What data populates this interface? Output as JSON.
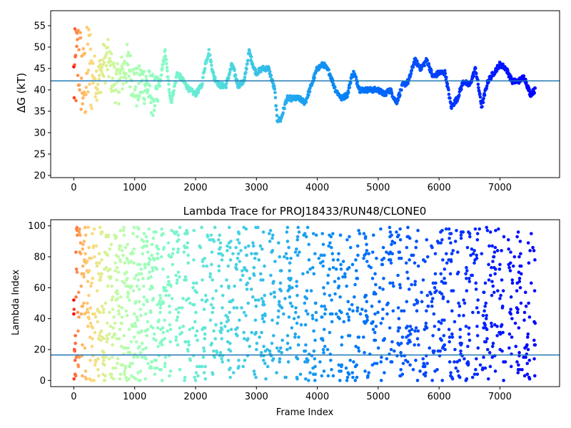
{
  "chart_data": [
    {
      "type": "scatter",
      "title": "",
      "xlabel": "",
      "ylabel": "ΔG (kT)",
      "xlim": [
        -380,
        7980
      ],
      "ylim": [
        19.5,
        58.5
      ],
      "xticks": [
        0,
        1000,
        2000,
        3000,
        4000,
        5000,
        6000,
        7000
      ],
      "yticks": [
        20,
        25,
        30,
        35,
        40,
        45,
        50,
        55
      ],
      "hline": 42.1,
      "hline_color": "#1f77b4",
      "colormap": "rainbow",
      "grid": false,
      "series": [
        {
          "x": [
            0,
            40,
            80,
            120,
            160,
            200,
            240,
            320,
            400,
            480,
            560,
            640,
            720,
            800,
            880,
            960,
            1040,
            1120,
            1200,
            1280,
            1360,
            1420,
            1500,
            1560,
            1600,
            1700,
            1800,
            1900,
            2000,
            2100,
            2160,
            2220,
            2300,
            2400,
            2500,
            2600,
            2700,
            2800,
            2880,
            2960,
            3000,
            3100,
            3200,
            3300,
            3340,
            3400,
            3500,
            3700,
            3800,
            3900,
            4000,
            4100,
            4200,
            4300,
            4400,
            4500,
            4560,
            4600,
            4700,
            4800,
            4900,
            5000,
            5100,
            5200,
            5300,
            5400,
            5500,
            5600,
            5700,
            5800,
            5900,
            6000,
            6100,
            6200,
            6300,
            6400,
            6500,
            6600,
            6700,
            6800,
            6900,
            7000,
            7100,
            7200,
            7300,
            7400,
            7500,
            7580
          ],
          "y": [
            42,
            45,
            48,
            44,
            40,
            43,
            46,
            44,
            42,
            46,
            47,
            43,
            41,
            44,
            46,
            43,
            40,
            42,
            41,
            39,
            38,
            42,
            49,
            41,
            37,
            44,
            42,
            40,
            39,
            41,
            46,
            49,
            43,
            41,
            41,
            46,
            41,
            42,
            49,
            45,
            44,
            45,
            45,
            40,
            33,
            33,
            38,
            38,
            37,
            41,
            45,
            46,
            44,
            40,
            38,
            39,
            43,
            44,
            40,
            40,
            40,
            40,
            39,
            40,
            37,
            41,
            42,
            47,
            45,
            47,
            43,
            44,
            44,
            36,
            38,
            42,
            41,
            45,
            36,
            42,
            44,
            46,
            45,
            42,
            42,
            43,
            39,
            40
          ]
        }
      ]
    },
    {
      "type": "scatter",
      "title": "Lambda Trace for PROJ18433/RUN48/CLONE0",
      "xlabel": "Frame Index",
      "ylabel": "Lambda Index",
      "xlim": [
        -380,
        7980
      ],
      "ylim": [
        -4,
        104
      ],
      "xticks": [
        0,
        1000,
        2000,
        3000,
        4000,
        5000,
        6000,
        7000
      ],
      "yticks": [
        0,
        20,
        40,
        60,
        80,
        100
      ],
      "hline": 16.5,
      "hline_color": "#1f77b4",
      "colormap": "rainbow",
      "grid": false,
      "series": [
        {
          "sampling": "dense scatter, ~8 points per 40 frames, values spread 0-99",
          "x": [
            0,
            200,
            400,
            600,
            800,
            1000,
            1200,
            1400,
            1600,
            1800,
            2000,
            2200,
            2400,
            2600,
            2800,
            3000,
            3200,
            3400,
            3600,
            3800,
            4000,
            4200,
            4400,
            4600,
            4800,
            5000,
            5200,
            5400,
            5600,
            5800,
            6000,
            6200,
            6400,
            6600,
            6800,
            7000,
            7200,
            7400,
            7580
          ],
          "y": [
            50,
            45,
            55,
            40,
            60,
            35,
            65,
            50,
            45,
            55,
            30,
            70,
            40,
            60,
            50,
            45,
            55,
            35,
            65,
            50,
            40,
            60,
            45,
            55,
            50,
            35,
            65,
            40,
            60,
            50,
            45,
            55,
            30,
            70,
            50,
            40,
            60,
            50,
            45
          ]
        }
      ]
    }
  ]
}
